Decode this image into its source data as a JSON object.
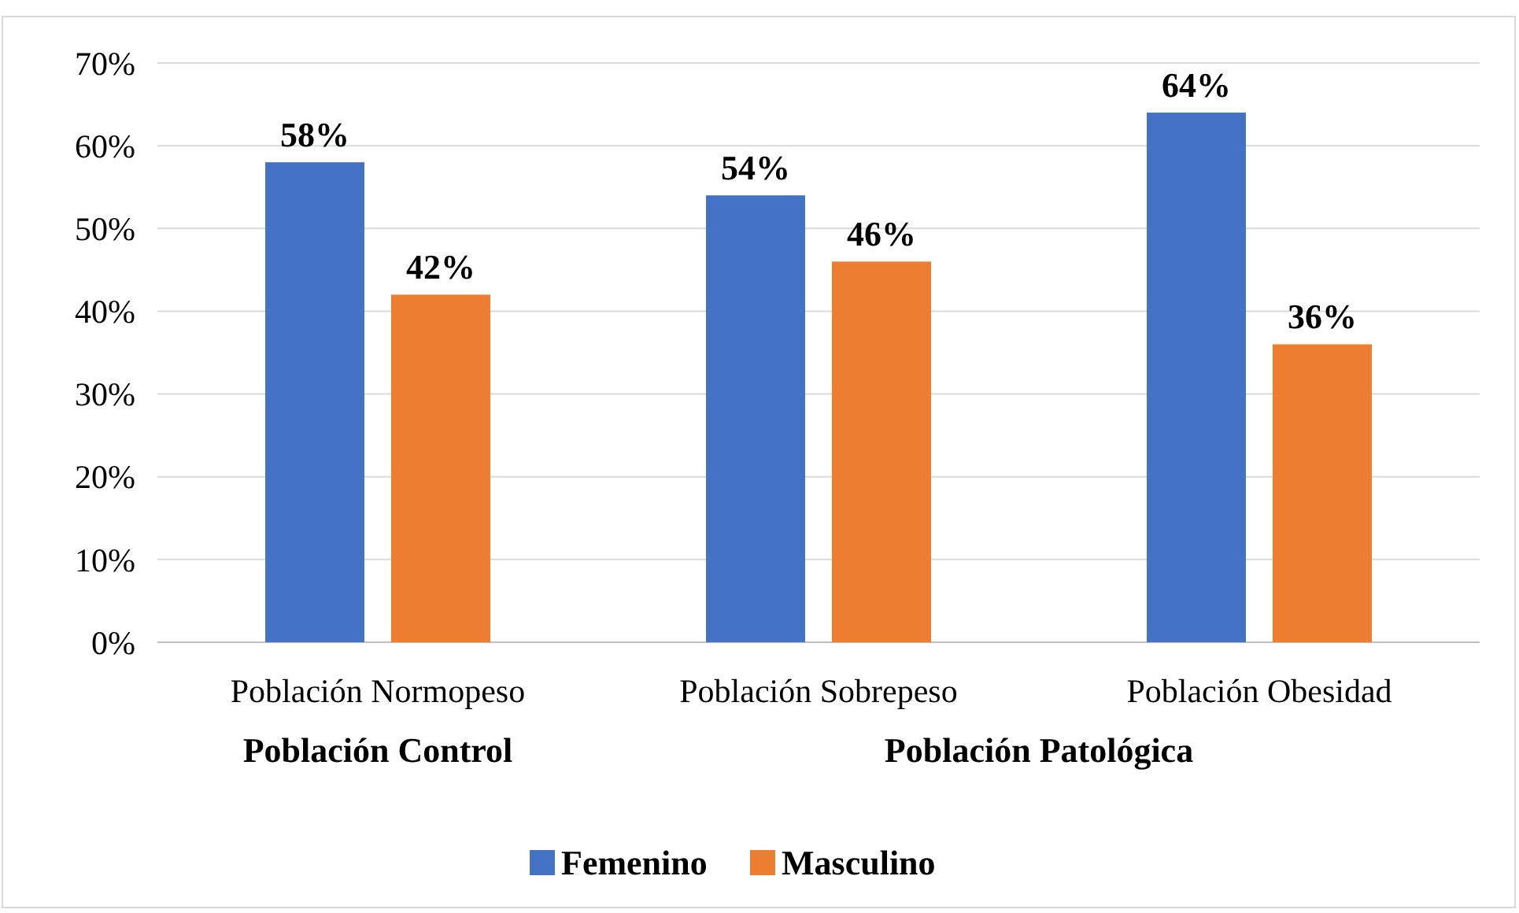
{
  "chart_data": {
    "type": "bar",
    "categories": [
      "Población Normopeso",
      "Población Sobrepeso",
      "Población Obesidad"
    ],
    "series": [
      {
        "name": "Femenino",
        "color": "#4472c4",
        "values": [
          58,
          54,
          64
        ],
        "value_labels": [
          "58%",
          "54%",
          "64%"
        ]
      },
      {
        "name": "Masculino",
        "color": "#ed7d31",
        "values": [
          42,
          46,
          36
        ],
        "value_labels": [
          "42%",
          "46%",
          "36%"
        ]
      }
    ],
    "ylim": [
      0,
      70
    ],
    "yticks": [
      {
        "value": 0,
        "label": "0%"
      },
      {
        "value": 10,
        "label": "10%"
      },
      {
        "value": 20,
        "label": "20%"
      },
      {
        "value": 30,
        "label": "30%"
      },
      {
        "value": 40,
        "label": "40%"
      },
      {
        "value": 50,
        "label": "50%"
      },
      {
        "value": 60,
        "label": "60%"
      },
      {
        "value": 70,
        "label": "70%"
      }
    ],
    "grid": "y",
    "legend": "bottom",
    "annotations": [
      "Población Control",
      "Población Patológica"
    ]
  }
}
